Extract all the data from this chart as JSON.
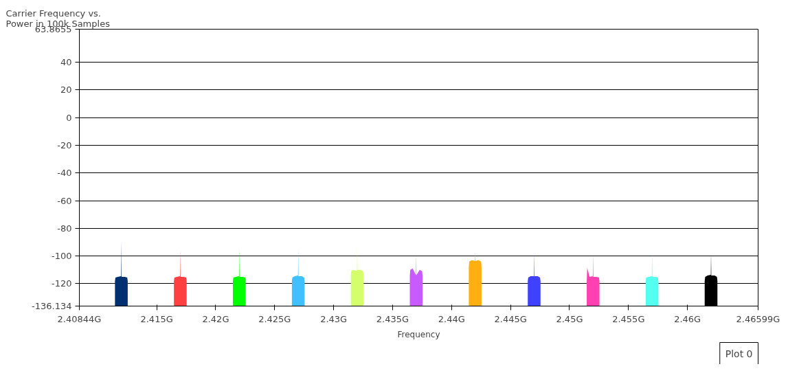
{
  "chart_data": {
    "type": "area",
    "title": "Carrier Frequency vs.\nPower in 100k Samples",
    "xlabel": "Frequency",
    "xlim": [
      2.40844,
      2.46599
    ],
    "ylim": [
      -136.134,
      63.8655
    ],
    "xticks": [
      {
        "value": 2.40844,
        "label": "2.40844G"
      },
      {
        "value": 2.415,
        "label": "2.415G"
      },
      {
        "value": 2.42,
        "label": "2.42G"
      },
      {
        "value": 2.425,
        "label": "2.425G"
      },
      {
        "value": 2.43,
        "label": "2.43G"
      },
      {
        "value": 2.435,
        "label": "2.435G"
      },
      {
        "value": 2.44,
        "label": "2.44G"
      },
      {
        "value": 2.445,
        "label": "2.445G"
      },
      {
        "value": 2.45,
        "label": "2.45G"
      },
      {
        "value": 2.455,
        "label": "2.455G"
      },
      {
        "value": 2.46,
        "label": "2.46G"
      },
      {
        "value": 2.46599,
        "label": "2.46599G"
      }
    ],
    "yticks": [
      -136.134,
      -120,
      -100,
      -80,
      -60,
      -40,
      -20,
      0,
      20,
      40,
      63.8655
    ],
    "grid": "y",
    "annotations": [
      "Plot 0"
    ],
    "series": [
      {
        "color": "#003070",
        "x": [
          2.41146,
          2.41146,
          2.4115,
          2.4117,
          2.41198,
          2.412,
          2.41202,
          2.4123,
          2.4125,
          2.41254,
          2.41254
        ],
        "values": [
          -136.134,
          -118,
          -115.5,
          -115,
          -114.5,
          -88.9,
          -115,
          -115,
          -115.5,
          -118,
          -136.134
        ]
      },
      {
        "color": "#ff4040",
        "x": [
          2.41646,
          2.41646,
          2.4165,
          2.4167,
          2.41698,
          2.417,
          2.41702,
          2.4173,
          2.4175,
          2.41754,
          2.41754
        ],
        "values": [
          -136.134,
          -118,
          -115.5,
          -115,
          -114.5,
          -95.1,
          -115,
          -115,
          -115.5,
          -118,
          -136.134
        ]
      },
      {
        "color": "#00ff00",
        "x": [
          2.42146,
          2.42146,
          2.4215,
          2.4217,
          2.42198,
          2.422,
          2.42202,
          2.4223,
          2.4225,
          2.42254,
          2.42254
        ],
        "values": [
          -136.134,
          -118,
          -115.5,
          -115,
          -114.5,
          -93.8,
          -115,
          -115,
          -115.5,
          -118,
          -136.134
        ]
      },
      {
        "color": "#40c0ff",
        "x": [
          2.42646,
          2.42646,
          2.4265,
          2.4267,
          2.42698,
          2.427,
          2.42702,
          2.4273,
          2.4275,
          2.42754,
          2.42754
        ],
        "values": [
          -136.134,
          -118,
          -115.5,
          -114.5,
          -114,
          -94.5,
          -114.5,
          -114.5,
          -115.5,
          -118,
          -136.134
        ]
      },
      {
        "color": "#d4ff6a",
        "x": [
          2.43146,
          2.43146,
          2.4315,
          2.4317,
          2.43198,
          2.432,
          2.43202,
          2.4323,
          2.4325,
          2.43254,
          2.43254
        ],
        "values": [
          -136.134,
          -114,
          -110.5,
          -110,
          -111,
          -91.1,
          -110,
          -110,
          -111,
          -114,
          -136.134
        ]
      },
      {
        "color": "#c85aff",
        "x": [
          2.43646,
          2.43646,
          2.4365,
          2.4367,
          2.43698,
          2.437,
          2.43702,
          2.4373,
          2.4375,
          2.43754,
          2.43754
        ],
        "values": [
          -136.134,
          -114,
          -110,
          -109,
          -113.8,
          -98.2,
          -113.8,
          -110,
          -111,
          -114,
          -136.134
        ]
      },
      {
        "color": "#ffb010",
        "x": [
          2.44146,
          2.44146,
          2.4415,
          2.4417,
          2.44198,
          2.442,
          2.44202,
          2.4423,
          2.4425,
          2.44254,
          2.44254
        ],
        "values": [
          -136.134,
          -108,
          -104,
          -103,
          -103.5,
          -96.5,
          -103.5,
          -103,
          -104,
          -108,
          -136.134
        ]
      },
      {
        "color": "#4040ff",
        "x": [
          2.44646,
          2.44646,
          2.4465,
          2.4467,
          2.44698,
          2.447,
          2.44702,
          2.4473,
          2.4475,
          2.44754,
          2.44754
        ],
        "values": [
          -136.134,
          -118,
          -115.5,
          -114.6,
          -114.5,
          -96.4,
          -114.5,
          -114.6,
          -115.5,
          -118,
          -136.134
        ]
      },
      {
        "color": "#ff40b0",
        "x": [
          2.45146,
          2.45146,
          2.4515,
          2.4517,
          2.45198,
          2.452,
          2.45202,
          2.4523,
          2.4525,
          2.45254,
          2.45254
        ],
        "values": [
          -136.134,
          -118,
          -108.5,
          -115,
          -114.5,
          -97.7,
          -115,
          -115,
          -115.5,
          -118,
          -136.134
        ]
      },
      {
        "color": "#55fff0",
        "x": [
          2.45646,
          2.45646,
          2.4565,
          2.4567,
          2.45698,
          2.457,
          2.45702,
          2.4573,
          2.4575,
          2.45754,
          2.45754
        ],
        "values": [
          -136.134,
          -118,
          -115.5,
          -115,
          -114.5,
          -95.4,
          -115,
          -115,
          -115.5,
          -118,
          -136.134
        ]
      },
      {
        "color": "#000000",
        "x": [
          2.46146,
          2.46146,
          2.4615,
          2.4617,
          2.46198,
          2.462,
          2.46202,
          2.4623,
          2.4625,
          2.46254,
          2.46254
        ],
        "values": [
          -136.134,
          -118,
          -115,
          -114,
          -113.5,
          -96.7,
          -114,
          -114,
          -115,
          -118,
          -136.134
        ]
      }
    ]
  }
}
